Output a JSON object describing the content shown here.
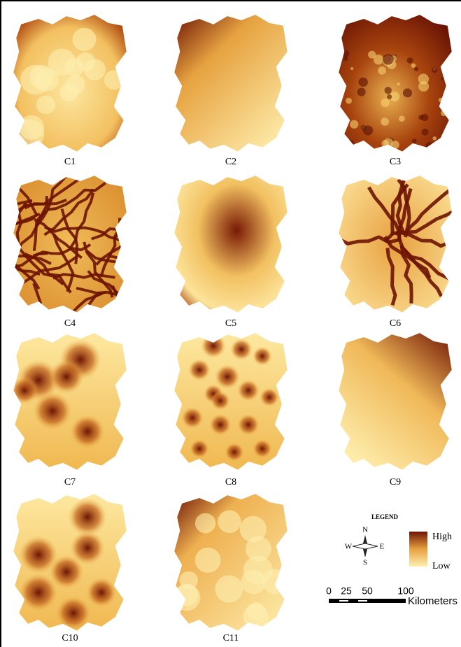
{
  "panels": [
    {
      "label": "C1"
    },
    {
      "label": "C2"
    },
    {
      "label": "C3"
    },
    {
      "label": "C4"
    },
    {
      "label": "C5"
    },
    {
      "label": "C6"
    },
    {
      "label": "C7"
    },
    {
      "label": "C8"
    },
    {
      "label": "C9"
    },
    {
      "label": "C10"
    },
    {
      "label": "C11"
    }
  ],
  "legend": {
    "title": "LEGEND",
    "high": "High",
    "low": "Low"
  },
  "compass": {
    "n": "N",
    "s": "S",
    "e": "E",
    "w": "W"
  },
  "scale_bar": {
    "ticks": [
      0,
      25,
      50,
      100
    ],
    "unit": "Kilometers"
  }
}
